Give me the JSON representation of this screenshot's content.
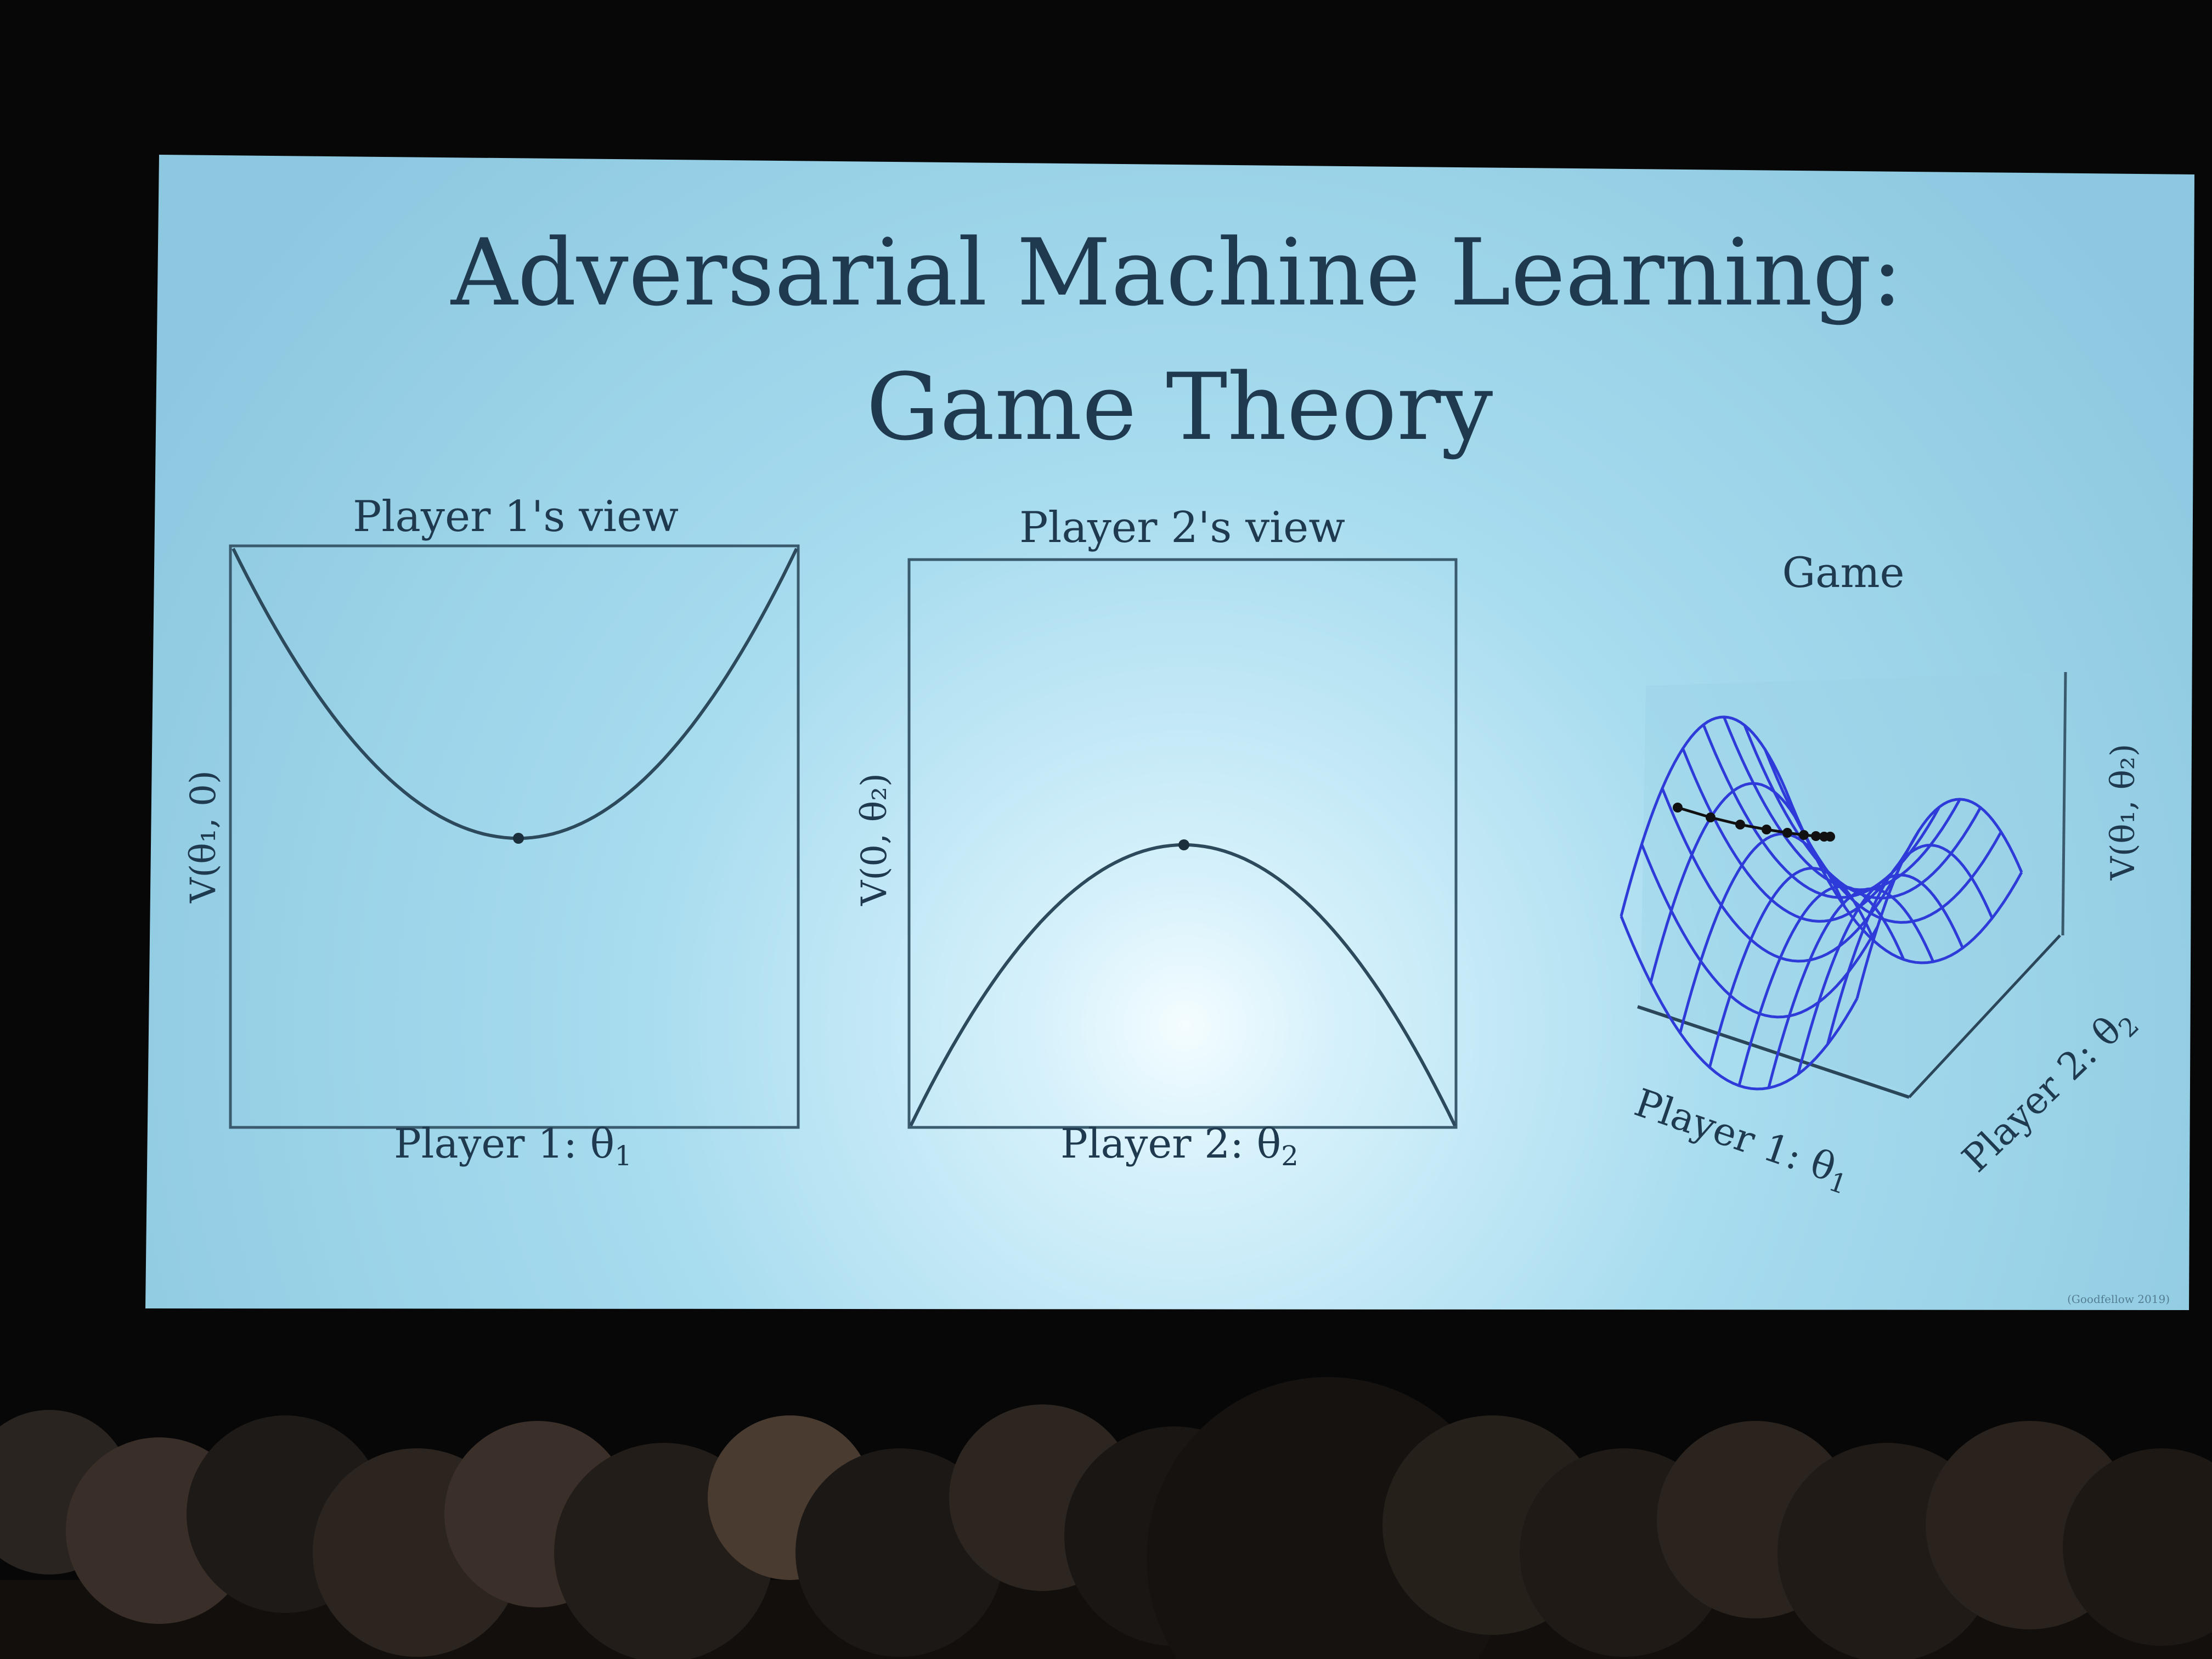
{
  "slide": {
    "title_line1": "Adversarial Machine Learning:",
    "title_line2": "Game Theory",
    "footer_credit": "(Goodfellow 2019)"
  },
  "panels": {
    "player1": {
      "title": "Player 1's view",
      "xlabel_text": "Player 1: θ",
      "xlabel_sub": "1",
      "ylabel": "V(θ₁, 0)"
    },
    "player2": {
      "title": "Player 2's view",
      "xlabel_text": "Player 2: θ",
      "xlabel_sub": "2",
      "ylabel": "V(0, θ₂)"
    },
    "game": {
      "title": "Game",
      "xlabel_text": "Player 1: θ",
      "xlabel_sub": "1",
      "ylabel_text": "Player 2: θ",
      "ylabel_sub": "2",
      "zlabel": "V(θ₁, θ₂)"
    }
  },
  "chart_data": [
    {
      "type": "line",
      "title": "Player 1's view",
      "xlabel": "Player 1: θ1",
      "ylabel": "V(θ1, 0)",
      "curve": "convex parabola (minimum marked)",
      "marked_point": "minimum",
      "grid": false
    },
    {
      "type": "line",
      "title": "Player 2's view",
      "xlabel": "Player 2: θ2",
      "ylabel": "V(0, θ2)",
      "curve": "concave parabola (maximum marked)",
      "marked_point": "maximum",
      "grid": false
    },
    {
      "type": "surface",
      "title": "Game",
      "xlabel": "Player 1: θ1",
      "ylabel": "Player 2: θ2",
      "zlabel": "V(θ1, θ2)",
      "surface": "saddle (wireframe)",
      "surface_color": "#2e3bd8",
      "trajectory": "black dotted path converging toward the saddle point"
    }
  ],
  "colors": {
    "slide_background": "#aee0f0",
    "text": "#1f3a4e",
    "wireframe": "#2e3bd8",
    "room": "#070707"
  }
}
